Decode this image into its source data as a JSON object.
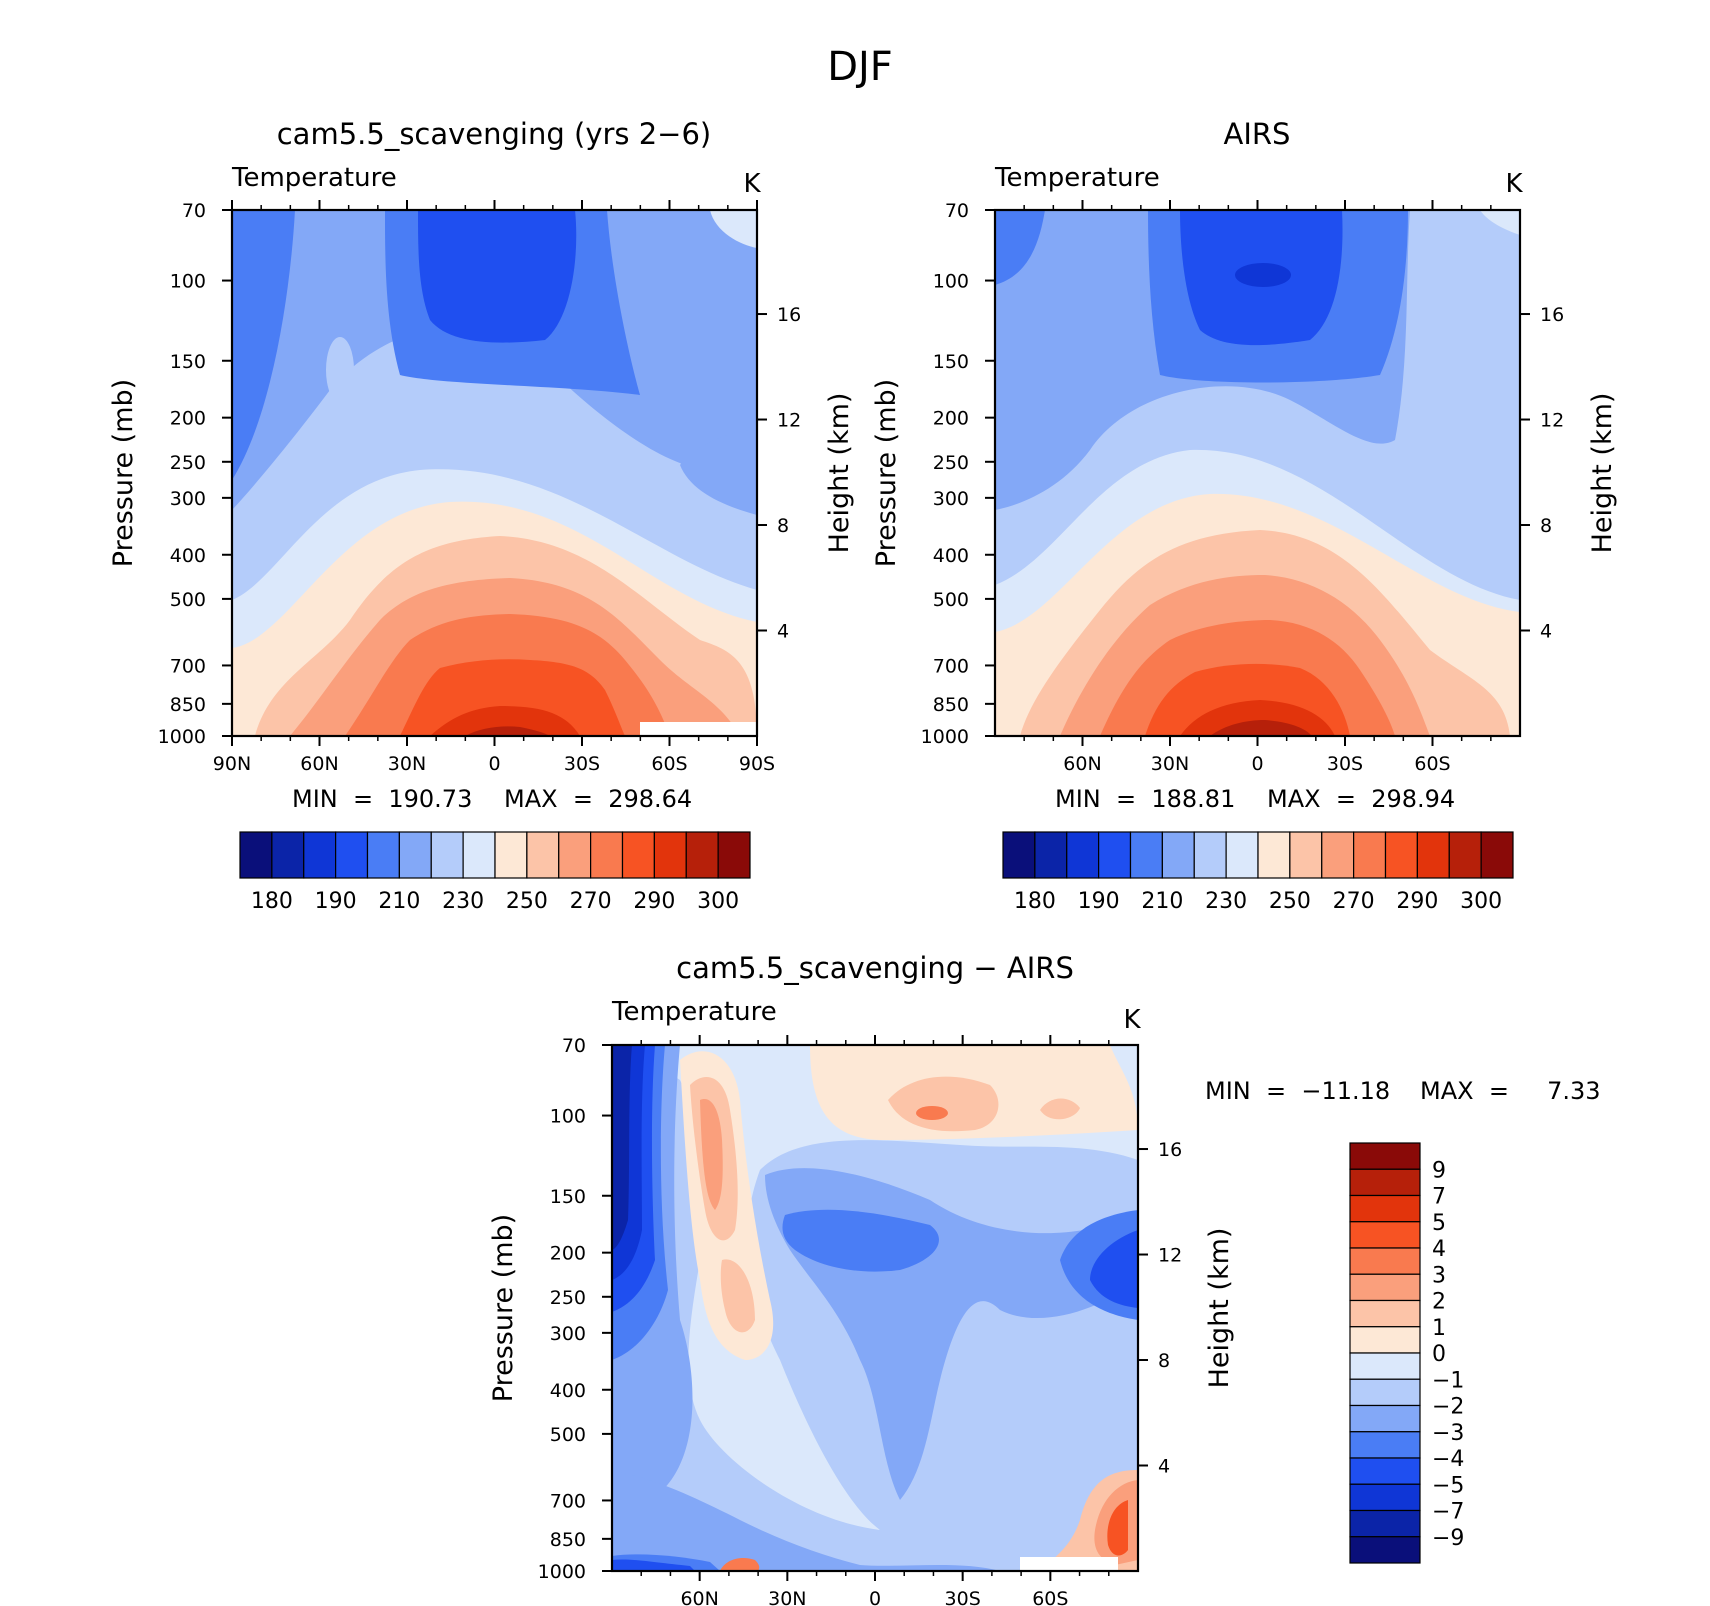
{
  "page": {
    "title": "DJF"
  },
  "panels": [
    {
      "id": "model",
      "title": "cam5.5_scavenging (yrs 2−6)",
      "variable": "Temperature",
      "units": "K",
      "stats": {
        "min_label": "MIN  =  190.73",
        "max_label": "MAX  =  298.64"
      },
      "x_ticks": [
        "90N",
        "60N",
        "30N",
        "0",
        "30S",
        "60S",
        "90S"
      ],
      "y_ticks": [
        "70",
        "100",
        "150",
        "200",
        "250",
        "300",
        "400",
        "500",
        "700",
        "850",
        "1000"
      ],
      "y2_ticks": [
        "16",
        "12",
        "8",
        "4"
      ],
      "y_title": "Pressure (mb)",
      "y2_title": "Height (km)",
      "colorbar": {
        "orientation": "horizontal",
        "labels": [
          "180",
          "190",
          "210",
          "230",
          "250",
          "270",
          "290",
          "300"
        ]
      }
    },
    {
      "id": "obs",
      "title": "AIRS",
      "variable": "Temperature",
      "units": "K",
      "stats": {
        "min_label": "MIN  =  188.81",
        "max_label": "MAX  =  298.94"
      },
      "x_ticks": [
        "60N",
        "30N",
        "0",
        "30S",
        "60S"
      ],
      "y_ticks": [
        "70",
        "100",
        "150",
        "200",
        "250",
        "300",
        "400",
        "500",
        "700",
        "850",
        "1000"
      ],
      "y2_ticks": [
        "16",
        "12",
        "8",
        "4"
      ],
      "y_title": "Pressure (mb)",
      "y2_title": "Height (km)",
      "colorbar": {
        "orientation": "horizontal",
        "labels": [
          "180",
          "190",
          "210",
          "230",
          "250",
          "270",
          "290",
          "300"
        ]
      }
    },
    {
      "id": "diff",
      "title": "cam5.5_scavenging − AIRS",
      "variable": "Temperature",
      "units": "K",
      "stats": {
        "min_label": "MIN  =  −11.18",
        "max_label": "MAX  =     7.33"
      },
      "x_ticks": [
        "60N",
        "30N",
        "0",
        "30S",
        "60S"
      ],
      "y_ticks": [
        "70",
        "100",
        "150",
        "200",
        "250",
        "300",
        "400",
        "500",
        "700",
        "850",
        "1000"
      ],
      "y2_ticks": [
        "16",
        "12",
        "8",
        "4"
      ],
      "y_title": "Pressure (mb)",
      "y2_title": "Height (km)",
      "colorbar": {
        "orientation": "vertical",
        "labels": [
          "9",
          "7",
          "5",
          "4",
          "3",
          "2",
          "1",
          "0",
          "−1",
          "−2",
          "−3",
          "−4",
          "−5",
          "−7",
          "−9"
        ]
      }
    }
  ],
  "colors": {
    "temperature_scale": [
      "#0a0f7a",
      "#0b24a8",
      "#0f36d6",
      "#1f4ff0",
      "#4a7df5",
      "#83a8f7",
      "#b4ccfa",
      "#dbe8fb",
      "#fde8d6",
      "#fcc4a8",
      "#fa9f7c",
      "#f97a4f",
      "#f75323",
      "#e2340c",
      "#b6200a",
      "#8a0a08"
    ],
    "difference_scale": [
      "#0a0f7a",
      "#0b24a8",
      "#0f36d6",
      "#1f4ff0",
      "#4a7df5",
      "#83a8f7",
      "#b4ccfa",
      "#dbe8fb",
      "#fde8d6",
      "#fcc4a8",
      "#fa9f7c",
      "#f97a4f",
      "#f75323",
      "#e2340c",
      "#b6200a",
      "#8a0a08"
    ]
  },
  "chart_data": [
    {
      "type": "heatmap",
      "title": "cam5.5_scavenging (yrs 2−6)",
      "subtitle": "Temperature",
      "units": "K",
      "xlabel": "",
      "ylabel": "Pressure (mb)",
      "y2label": "Height (km)",
      "x_range_deg": [
        90,
        -90
      ],
      "x_ticks_deg": [
        90,
        60,
        30,
        0,
        -30,
        -60,
        -90
      ],
      "y_range_mb": [
        70,
        1000
      ],
      "y_ticks_mb": [
        70,
        100,
        150,
        200,
        250,
        300,
        400,
        500,
        700,
        850,
        1000
      ],
      "y2_ticks_km": [
        16,
        12,
        8,
        4
      ],
      "contour_levels": [
        180,
        185,
        190,
        200,
        210,
        220,
        230,
        240,
        250,
        260,
        270,
        280,
        290,
        295,
        300
      ],
      "min": 190.73,
      "max": 298.64
    },
    {
      "type": "heatmap",
      "title": "AIRS",
      "subtitle": "Temperature",
      "units": "K",
      "xlabel": "",
      "ylabel": "Pressure (mb)",
      "y2label": "Height (km)",
      "x_range_deg": [
        90,
        -90
      ],
      "x_ticks_deg": [
        60,
        30,
        0,
        -30,
        -60
      ],
      "y_range_mb": [
        70,
        1000
      ],
      "y_ticks_mb": [
        70,
        100,
        150,
        200,
        250,
        300,
        400,
        500,
        700,
        850,
        1000
      ],
      "y2_ticks_km": [
        16,
        12,
        8,
        4
      ],
      "contour_levels": [
        180,
        185,
        190,
        200,
        210,
        220,
        230,
        240,
        250,
        260,
        270,
        280,
        290,
        295,
        300
      ],
      "min": 188.81,
      "max": 298.94
    },
    {
      "type": "heatmap",
      "title": "cam5.5_scavenging − AIRS",
      "subtitle": "Temperature",
      "units": "K",
      "xlabel": "",
      "ylabel": "Pressure (mb)",
      "y2label": "Height (km)",
      "x_range_deg": [
        90,
        -90
      ],
      "x_ticks_deg": [
        60,
        30,
        0,
        -30,
        -60
      ],
      "y_range_mb": [
        70,
        1000
      ],
      "y_ticks_mb": [
        70,
        100,
        150,
        200,
        250,
        300,
        400,
        500,
        700,
        850,
        1000
      ],
      "y2_ticks_km": [
        16,
        12,
        8,
        4
      ],
      "contour_levels": [
        -9,
        -7,
        -5,
        -4,
        -3,
        -2,
        -1,
        0,
        1,
        2,
        3,
        4,
        5,
        7,
        9
      ],
      "min": -11.18,
      "max": 7.33
    }
  ]
}
